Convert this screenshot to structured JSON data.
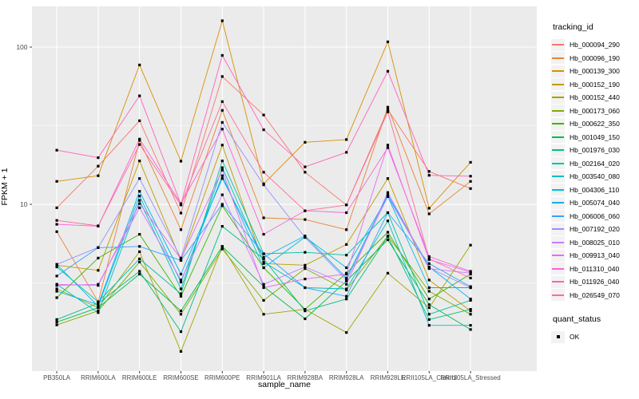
{
  "figure": {
    "panel_bg": "#EBEBEB",
    "grid_color": "#FFFFFF",
    "axis_text_color": "#4D4D4D",
    "tick_mark_color": "#333333",
    "point_color": "#000000"
  },
  "legend": {
    "title": "tracking_id",
    "quant_title": "quant_status",
    "quant_items": [
      {
        "label": "OK",
        "shape": "square",
        "color": "#000000"
      }
    ]
  },
  "chart_data": {
    "type": "line",
    "title": "",
    "xlabel": "sample_name",
    "ylabel": "FPKM + 1",
    "y_scale": "log10",
    "ylim": [
      0.87,
      181.5
    ],
    "y_breaks": [
      10,
      100
    ],
    "y_tick_labels": [
      "10",
      "100"
    ],
    "y_minor_breaks": [
      3.162,
      31.62
    ],
    "grid": true,
    "legend_position": "right",
    "marker": "small-black-square",
    "categories": [
      "PB350LA",
      "RRIM600LA",
      "RRIM600LE",
      "RRIM600SE",
      "RRIM600PE",
      "RRIM901LA",
      "RRIM928BA",
      "RRIM928LA",
      "RRIM928LE",
      "RRII105LA_Control",
      "RRII105LA_Stressed"
    ],
    "series": [
      {
        "name": "Hb_000094_290",
        "color": "#F8766D",
        "values": [
          9.5,
          17.5,
          34,
          8.8,
          65,
          37,
          16,
          9.9,
          40,
          16.2,
          12.6
        ]
      },
      {
        "name": "Hb_000096_190",
        "color": "#EA8331",
        "values": [
          6.7,
          2.4,
          25.5,
          6.9,
          39.6,
          8.2,
          8.0,
          6.9,
          41.5,
          8.7,
          14.0
        ]
      },
      {
        "name": "Hb_000139_300",
        "color": "#D89000",
        "values": [
          14.0,
          15.2,
          77,
          18.8,
          147,
          13.5,
          24.8,
          25.8,
          108,
          9.45,
          18.5
        ]
      },
      {
        "name": "Hb_000152_190",
        "color": "#C09B00",
        "values": [
          4.1,
          3.8,
          18.9,
          4.4,
          23.8,
          4.2,
          4.1,
          5.55,
          14.6,
          3.3,
          2.1
        ]
      },
      {
        "name": "Hb_000152_440",
        "color": "#A3A500",
        "values": [
          2.9,
          2.2,
          5.0,
          1.16,
          5.4,
          2.0,
          2.15,
          1.53,
          3.65,
          2.2,
          5.5
        ]
      },
      {
        "name": "Hb_000173_060",
        "color": "#7CAE00",
        "values": [
          1.71,
          2.1,
          4.3,
          2.0,
          5.2,
          2.45,
          3.9,
          2.85,
          6.3,
          2.8,
          2.0
        ]
      },
      {
        "name": "Hb_000622_350",
        "color": "#39B600",
        "values": [
          2.55,
          4.55,
          6.45,
          2.6,
          9.8,
          3.95,
          2.15,
          3.65,
          6.65,
          2.5,
          3.6
        ]
      },
      {
        "name": "Hb_001049_150",
        "color": "#00BB4E",
        "values": [
          1.78,
          2.2,
          3.6,
          2.1,
          5.4,
          3.0,
          1.87,
          3.25,
          5.95,
          2.3,
          1.6
        ]
      },
      {
        "name": "Hb_001976_030",
        "color": "#00BF7D",
        "values": [
          1.85,
          2.35,
          3.75,
          1.55,
          7.25,
          4.5,
          2.1,
          2.5,
          6.25,
          1.85,
          2.15
        ]
      },
      {
        "name": "Hb_002164_020",
        "color": "#00C1A3",
        "values": [
          4.0,
          2.4,
          4.5,
          2.7,
          18.9,
          4.85,
          4.95,
          4.75,
          8.85,
          2.0,
          2.45
        ]
      },
      {
        "name": "Hb_003540_080",
        "color": "#00BFC4",
        "values": [
          3.1,
          2.05,
          10.6,
          2.9,
          17.1,
          4.3,
          2.95,
          2.9,
          7.85,
          1.7,
          1.7
        ]
      },
      {
        "name": "Hb_004306_110",
        "color": "#00BAE0",
        "values": [
          4.15,
          2.25,
          11.3,
          3.2,
          15.2,
          3.95,
          6.2,
          3.95,
          11.2,
          2.95,
          2.95
        ]
      },
      {
        "name": "Hb_005074_040",
        "color": "#00B0F6",
        "values": [
          2.8,
          2.3,
          12.1,
          3.6,
          14.6,
          4.6,
          6.3,
          3.4,
          11.5,
          4.0,
          2.5
        ]
      },
      {
        "name": "Hb_006006_060",
        "color": "#35A2FF",
        "values": [
          3.5,
          5.3,
          5.4,
          4.4,
          10.0,
          4.85,
          2.95,
          2.6,
          8.85,
          4.2,
          3.0
        ]
      },
      {
        "name": "Hb_007192_020",
        "color": "#9590FF",
        "values": [
          4.15,
          5.32,
          14.6,
          4.55,
          33.2,
          13.3,
          6.15,
          3.3,
          11.2,
          3.95,
          2.95
        ]
      },
      {
        "name": "Hb_008025_010",
        "color": "#C77CFF",
        "values": [
          3.05,
          3.1,
          9.5,
          3.3,
          11.5,
          3.1,
          4.0,
          3.1,
          11.9,
          3.9,
          3.65
        ]
      },
      {
        "name": "Hb_009913_040",
        "color": "#E76BF3",
        "values": [
          3.1,
          3.05,
          10.1,
          4.5,
          16.5,
          2.95,
          3.35,
          3.6,
          23.8,
          4.45,
          3.7
        ]
      },
      {
        "name": "Hb_011310_040",
        "color": "#FA62DB",
        "values": [
          7.46,
          7.26,
          26,
          10.1,
          30.1,
          6.45,
          9.1,
          8.85,
          22.9,
          4.65,
          3.75
        ]
      },
      {
        "name": "Hb_011926_040",
        "color": "#FF62BC",
        "values": [
          22.1,
          19.8,
          49,
          10.0,
          88.6,
          29.8,
          17.3,
          21.4,
          70.2,
          15.3,
          15.1
        ]
      },
      {
        "name": "Hb_026549_070",
        "color": "#FF6A98",
        "values": [
          7.9,
          7.3,
          24.0,
          9.9,
          45,
          16.0,
          9.1,
          9.9,
          38.7,
          4.5,
          3.4
        ]
      }
    ]
  }
}
